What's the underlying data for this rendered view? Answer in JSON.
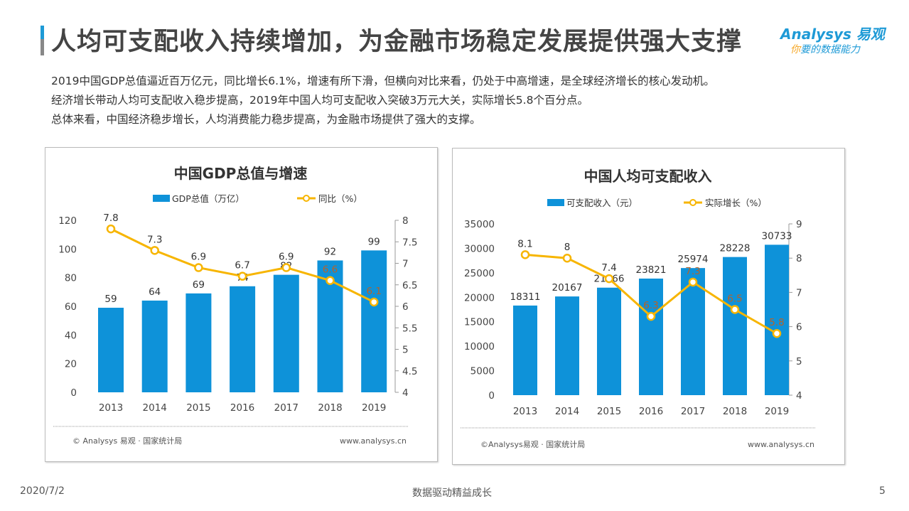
{
  "title": "人均可支配收入持续增加，为金融市场稳定发展提供强大支撑",
  "logo": {
    "brand": "Analysys 易观",
    "slogan_accent": "你",
    "slogan_rest": "要的数据能力"
  },
  "paragraphs": [
    "2019中国GDP总值逼近百万亿元，同比增长6.1%，增速有所下滑，但横向对比来看，仍处于中高增速，是全球经济增长的核心发动机。",
    "经济增长带动人均可支配收入稳步提高，2019年中国人均可支配收入突破3万元大关，实际增长5.8个百分点。",
    "总体来看，中国经济稳步增长，人均消费能力稳步提高，为金融市场提供了强大的支撑。"
  ],
  "footer": {
    "date": "2020/7/2",
    "slogan": "数据驱动精益成长",
    "page": "5"
  },
  "colors": {
    "bar": "#0e92d9",
    "line": "#f7b500",
    "accent": "#1e9ad6",
    "inner_label": "#b5632a"
  },
  "chart_data": [
    {
      "type": "bar+line",
      "title": "中国GDP总值与增速",
      "categories": [
        "2013",
        "2014",
        "2015",
        "2016",
        "2017",
        "2018",
        "2019"
      ],
      "series": [
        {
          "name": "GDP总值（万亿）",
          "type": "bar",
          "axis": "left",
          "values": [
            59,
            64,
            69,
            74,
            82,
            92,
            99
          ]
        },
        {
          "name": "同比（%）",
          "type": "line",
          "axis": "right",
          "values": [
            7.8,
            7.3,
            6.9,
            6.7,
            6.9,
            6.6,
            6.1
          ]
        }
      ],
      "left_axis": {
        "range": [
          0,
          120
        ],
        "ticks": [
          "0",
          "20",
          "40",
          "60",
          "80",
          "100",
          "120"
        ]
      },
      "right_axis": {
        "range": [
          4,
          8
        ],
        "ticks": [
          "4",
          "4.5",
          "5",
          "5.5",
          "6",
          "6.5",
          "7",
          "7.5",
          "8"
        ]
      },
      "legend": "top",
      "source": "© Analysys 易观 · 国家统计局",
      "url": "www.analysys.cn"
    },
    {
      "type": "bar+line",
      "title": "中国人均可支配收入",
      "categories": [
        "2013",
        "2014",
        "2015",
        "2016",
        "2017",
        "2018",
        "2019"
      ],
      "series": [
        {
          "name": "可支配收入（元）",
          "type": "bar",
          "axis": "left",
          "values": [
            18311,
            20167,
            21966,
            23821,
            25974,
            28228,
            30733
          ]
        },
        {
          "name": "实际增长（%）",
          "type": "line",
          "axis": "right",
          "values": [
            8.1,
            8,
            7.4,
            6.3,
            7.3,
            6.5,
            5.8
          ]
        }
      ],
      "left_axis": {
        "range": [
          0,
          35000
        ],
        "ticks": [
          "0",
          "5000",
          "10000",
          "15000",
          "20000",
          "25000",
          "30000",
          "35000"
        ]
      },
      "right_axis": {
        "range": [
          4,
          9
        ],
        "ticks": [
          "4",
          "5",
          "6",
          "7",
          "8",
          "9"
        ]
      },
      "legend": "top",
      "source": "©Analysys易观 · 国家统计局",
      "url": "www.analysys.cn"
    }
  ]
}
